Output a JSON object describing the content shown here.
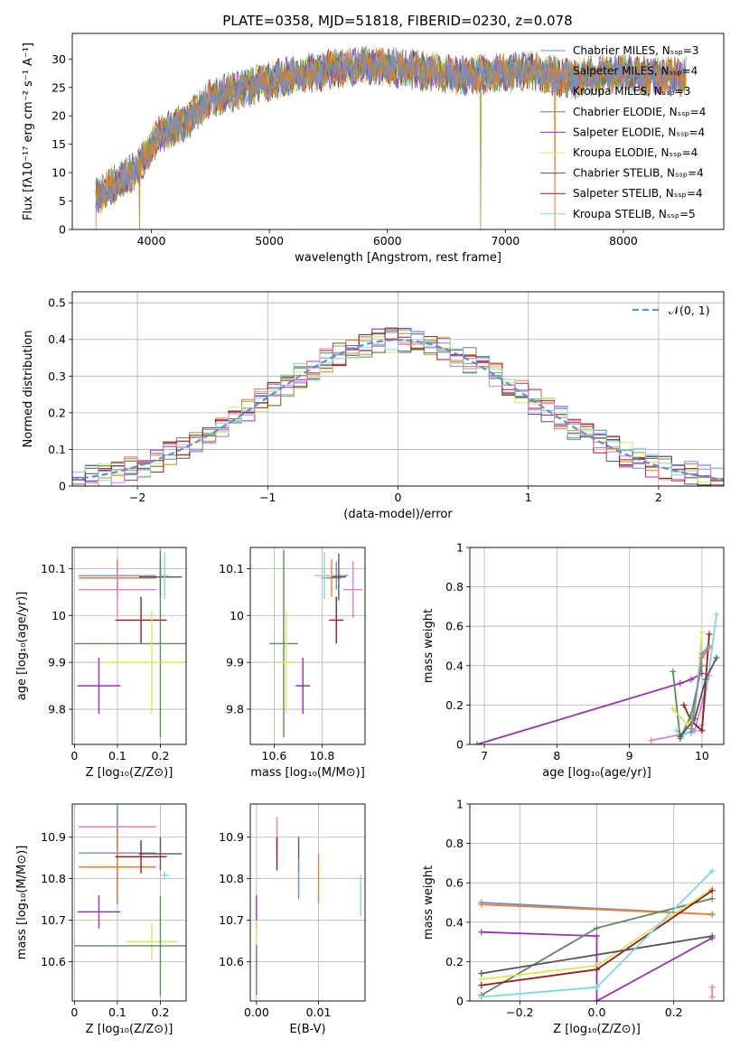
{
  "figure": {
    "title": "PLATE=0358, MJD=51818, FIBERID=0230, z=0.078"
  },
  "colors": {
    "Chabrier MILES": "#6a8fd8",
    "Salpeter MILES": "#f07d2a",
    "Kroupa MILES": "#a89a2a",
    "Chabrier ELODIE": "#5b8a5f",
    "Salpeter ELODIE": "#9a2fb8",
    "Kroupa ELODIE": "#d7e85a",
    "Chabrier STELIB": "#555555",
    "Salpeter STELIB": "#a01818",
    "Kroupa STELIB": "#7fd8e0",
    "pink": "#e27fc2",
    "normal_curve": "#5b8fd8",
    "grid": "#b0b0b0"
  },
  "chart_data": [
    {
      "id": "spectrum",
      "type": "line",
      "xlabel": "wavelength [Angstrom, rest frame]",
      "ylabel": "Flux [fλ10⁻¹⁷ erg cm⁻² s⁻¹ A⁻¹]",
      "xlim": [
        3330,
        8850
      ],
      "ylim": [
        0,
        34.5
      ],
      "xticks": [
        4000,
        5000,
        6000,
        7000,
        8000
      ],
      "yticks": [
        0,
        5,
        10,
        15,
        20,
        25,
        30
      ],
      "grid": false,
      "legend_position": "top-right",
      "legend": [
        "Chabrier MILES, Nₛₛₚ=3",
        "Salpeter MILES, Nₛₛₚ=4",
        "Kroupa MILES, Nₛₛₚ=3",
        "Chabrier ELODIE, Nₛₛₚ=4",
        "Salpeter ELODIE, Nₛₛₚ=4",
        "Kroupa ELODIE, Nₛₛₚ=4",
        "Chabrier STELIB, Nₛₛₚ=4",
        "Salpeter STELIB, Nₛₛₚ=4",
        "Kroupa STELIB, Nₛₛₚ=5"
      ],
      "legend_series": [
        "Chabrier MILES",
        "Salpeter MILES",
        "Kroupa MILES",
        "Chabrier ELODIE",
        "Salpeter ELODIE",
        "Kroupa ELODIE",
        "Chabrier STELIB",
        "Salpeter STELIB",
        "Kroupa STELIB"
      ],
      "continuum_x": [
        3550,
        3700,
        3900,
        4000,
        4100,
        4300,
        4500,
        4800,
        5000,
        5200,
        5500,
        5800,
        6000,
        6300,
        6600,
        7000,
        7200,
        7400,
        7600,
        7900,
        8200,
        8500
      ],
      "continuum_y": [
        6,
        8,
        11,
        15,
        17,
        19,
        23,
        25,
        26,
        27,
        28,
        29,
        28.5,
        28,
        27,
        27.5,
        28,
        27,
        26.5,
        27.5,
        27,
        27
      ],
      "x_start": 3530,
      "x_end": 8530
    },
    {
      "id": "residuals",
      "type": "line",
      "xlabel": "(data-model)/error",
      "ylabel": "Normed distribution",
      "xlim": [
        -2.5,
        2.5
      ],
      "ylim": [
        0,
        0.53
      ],
      "xticks": [
        -2,
        -1,
        0,
        1,
        2
      ],
      "xtick_labels": [
        "−2",
        "−1",
        "0",
        "1",
        "2"
      ],
      "yticks": [
        0.0,
        0.1,
        0.2,
        0.3,
        0.4,
        0.5
      ],
      "grid": true,
      "legend_position": "top-right",
      "legend": [
        "𝒩(0, 1)"
      ],
      "bin_width": 0.1
    },
    {
      "id": "age_vs_Z",
      "type": "scatter",
      "xlabel": "Z [log₁₀(Z/Z⊙)]",
      "ylabel": "age  [log₁₀(age/yr)]",
      "xlim": [
        -0.005,
        0.26
      ],
      "ylim": [
        9.725,
        10.145
      ],
      "xticks": [
        0.0,
        0.1,
        0.2
      ],
      "yticks": [
        9.8,
        9.9,
        10.0,
        10.1
      ],
      "grid": true,
      "points": [
        {
          "s": "Chabrier MILES",
          "x": 0.1,
          "y": 10.085,
          "xerr": 0.09,
          "yerr": 0.03
        },
        {
          "s": "Salpeter MILES",
          "x": 0.1,
          "y": 10.08,
          "xerr": 0.09,
          "yerr": 0.04
        },
        {
          "s": "pink",
          "x": 0.1,
          "y": 10.055,
          "xerr": 0.09,
          "yerr": 0.06
        },
        {
          "s": "Chabrier STELIB",
          "x": 0.2,
          "y": 10.082,
          "xerr": 0.05,
          "yerr": 0.04
        },
        {
          "s": "Kroupa STELIB",
          "x": 0.21,
          "y": 10.085,
          "xerr": 0.01,
          "yerr": 0.05
        },
        {
          "s": "Salpeter STELIB",
          "x": 0.155,
          "y": 9.99,
          "xerr": 0.06,
          "yerr": 0.05
        },
        {
          "s": "Chabrier ELODIE",
          "x": 0.2,
          "y": 9.94,
          "xerr": 0.2,
          "yerr": 0.2
        },
        {
          "s": "Kroupa ELODIE",
          "x": 0.18,
          "y": 9.9,
          "xerr": 0.12,
          "yerr": 0.11
        },
        {
          "s": "Salpeter ELODIE",
          "x": 0.057,
          "y": 9.85,
          "xerr": 0.05,
          "yerr": 0.06
        }
      ]
    },
    {
      "id": "age_vs_mass",
      "type": "scatter",
      "xlabel": "mass [log₁₀(M/M⊙)]",
      "ylabel": "",
      "xlim": [
        10.5,
        10.98
      ],
      "ylim": [
        9.725,
        10.145
      ],
      "xticks": [
        10.6,
        10.8
      ],
      "yticks": [
        9.8,
        9.9,
        10.0,
        10.1
      ],
      "grid": true,
      "points": [
        {
          "s": "Chabrier MILES",
          "x": 10.86,
          "y": 10.085,
          "xerr": 0.05,
          "yerr": 0.03
        },
        {
          "s": "Salpeter MILES",
          "x": 10.84,
          "y": 10.08,
          "xerr": 0.04,
          "yerr": 0.04
        },
        {
          "s": "pink",
          "x": 10.93,
          "y": 10.055,
          "xerr": 0.04,
          "yerr": 0.06
        },
        {
          "s": "Chabrier STELIB",
          "x": 10.87,
          "y": 10.082,
          "xerr": 0.03,
          "yerr": 0.05
        },
        {
          "s": "Kroupa STELIB",
          "x": 10.81,
          "y": 10.085,
          "xerr": 0.04,
          "yerr": 0.05
        },
        {
          "s": "Salpeter STELIB",
          "x": 10.86,
          "y": 9.99,
          "xerr": 0.03,
          "yerr": 0.05
        },
        {
          "s": "Chabrier ELODIE",
          "x": 10.64,
          "y": 9.94,
          "xerr": 0.06,
          "yerr": 0.2
        },
        {
          "s": "Kroupa ELODIE",
          "x": 10.65,
          "y": 9.9,
          "xerr": 0.03,
          "yerr": 0.11
        },
        {
          "s": "Salpeter ELODIE",
          "x": 10.72,
          "y": 9.85,
          "xerr": 0.03,
          "yerr": 0.06
        }
      ]
    },
    {
      "id": "weight_vs_age",
      "type": "line",
      "xlabel": "age  [log₁₀(age/yr)]",
      "ylabel": "mass weight",
      "xlim": [
        6.8,
        10.3
      ],
      "ylim": [
        0,
        1.0
      ],
      "xticks": [
        7,
        8,
        9,
        10
      ],
      "yticks": [
        0.0,
        0.2,
        0.4,
        0.6,
        0.8,
        1.0
      ],
      "grid": true,
      "series": [
        {
          "s": "Salpeter ELODIE",
          "x": [
            6.9,
            9.7,
            9.85,
            10.0
          ],
          "y": [
            0.0,
            0.31,
            0.33,
            0.36
          ]
        },
        {
          "s": "pink",
          "x": [
            9.3,
            9.7,
            9.9,
            10.1
          ],
          "y": [
            0.02,
            0.05,
            0.07,
            0.35
          ]
        },
        {
          "s": "Kroupa STELIB",
          "x": [
            9.65,
            9.75,
            10.0,
            10.2
          ],
          "y": [
            0.07,
            0.05,
            0.1,
            0.66
          ]
        },
        {
          "s": "Salpeter STELIB",
          "x": [
            9.75,
            9.85,
            10.0,
            10.1
          ],
          "y": [
            0.2,
            0.12,
            0.07,
            0.56
          ]
        },
        {
          "s": "Chabrier ELODIE",
          "x": [
            9.6,
            9.7,
            9.85,
            10.0
          ],
          "y": [
            0.37,
            0.03,
            0.15,
            0.4
          ]
        },
        {
          "s": "Kroupa ELODIE",
          "x": [
            9.6,
            9.8,
            9.9,
            10.0
          ],
          "y": [
            0.18,
            0.1,
            0.15,
            0.57
          ]
        },
        {
          "s": "Chabrier STELIB",
          "x": [
            9.7,
            9.9,
            10.05,
            10.2
          ],
          "y": [
            0.04,
            0.13,
            0.33,
            0.44
          ]
        },
        {
          "s": "Salpeter MILES",
          "x": [
            9.85,
            10.0,
            10.1
          ],
          "y": [
            0.08,
            0.44,
            0.49
          ]
        },
        {
          "s": "Chabrier MILES",
          "x": [
            9.85,
            10.0,
            10.1
          ],
          "y": [
            0.06,
            0.46,
            0.5
          ]
        }
      ]
    },
    {
      "id": "mass_vs_Z",
      "type": "scatter",
      "xlabel": "Z [log₁₀(Z/Z⊙)]",
      "ylabel": "mass [log₁₀(M/M⊙)]",
      "xlim": [
        -0.005,
        0.26
      ],
      "ylim": [
        10.505,
        10.98
      ],
      "xticks": [
        0.0,
        0.1,
        0.2
      ],
      "yticks": [
        10.6,
        10.7,
        10.8,
        10.9
      ],
      "grid": true,
      "points": [
        {
          "s": "pink",
          "x": 0.1,
          "y": 10.925,
          "xerr": 0.09,
          "yerr": 0.05
        },
        {
          "s": "Chabrier MILES",
          "x": 0.1,
          "y": 10.862,
          "xerr": 0.09,
          "yerr": 0.12
        },
        {
          "s": "Salpeter MILES",
          "x": 0.1,
          "y": 10.828,
          "xerr": 0.09,
          "yerr": 0.09
        },
        {
          "s": "Chabrier STELIB",
          "x": 0.2,
          "y": 10.86,
          "xerr": 0.05,
          "yerr": 0.04
        },
        {
          "s": "Salpeter STELIB",
          "x": 0.155,
          "y": 10.853,
          "xerr": 0.06,
          "yerr": 0.04
        },
        {
          "s": "Kroupa STELIB",
          "x": 0.21,
          "y": 10.808,
          "xerr": 0.01,
          "yerr": 0.01
        },
        {
          "s": "Salpeter ELODIE",
          "x": 0.057,
          "y": 10.72,
          "xerr": 0.05,
          "yerr": 0.04
        },
        {
          "s": "Kroupa ELODIE",
          "x": 0.18,
          "y": 10.648,
          "xerr": 0.06,
          "yerr": 0.045
        },
        {
          "s": "Chabrier ELODIE",
          "x": 0.2,
          "y": 10.638,
          "xerr": 0.2,
          "yerr": 0.12
        }
      ]
    },
    {
      "id": "mass_vs_ebv",
      "type": "scatter",
      "xlabel": "E(B-V)",
      "ylabel": "",
      "xlim": [
        -0.001,
        0.0175
      ],
      "ylim": [
        10.505,
        10.98
      ],
      "xticks": [
        0.0,
        0.01
      ],
      "xtick_labels": [
        "0.00",
        "0.01"
      ],
      "yticks": [
        10.6,
        10.7,
        10.8,
        10.9
      ],
      "grid": true,
      "points": [
        {
          "s": "pink",
          "x": 0.0033,
          "y": 10.9,
          "xerr": 0,
          "yerr": 0.05
        },
        {
          "s": "Salpeter STELIB",
          "x": 0.0033,
          "y": 10.86,
          "xerr": 0,
          "yerr": 0.04
        },
        {
          "s": "Chabrier STELIB",
          "x": 0.0068,
          "y": 10.86,
          "xerr": 0,
          "yerr": 0.04
        },
        {
          "s": "Chabrier MILES",
          "x": 0.0068,
          "y": 10.8,
          "xerr": 0,
          "yerr": 0.05
        },
        {
          "s": "Salpeter MILES",
          "x": 0.01,
          "y": 10.8,
          "xerr": 0,
          "yerr": 0.06
        },
        {
          "s": "Kroupa STELIB",
          "x": 0.0168,
          "y": 10.76,
          "xerr": 0,
          "yerr": 0.05
        },
        {
          "s": "Salpeter ELODIE",
          "x": 0.0,
          "y": 10.72,
          "xerr": 0,
          "yerr": 0.04
        },
        {
          "s": "Kroupa ELODIE",
          "x": 0.0,
          "y": 10.65,
          "xerr": 0,
          "yerr": 0.05
        },
        {
          "s": "Chabrier ELODIE",
          "x": 0.0,
          "y": 10.58,
          "xerr": 0,
          "yerr": 0.06
        }
      ]
    },
    {
      "id": "weight_vs_Z",
      "type": "line",
      "xlabel": "Z [log₁₀(Z/Z⊙)]",
      "ylabel": "mass weight",
      "xlim": [
        -0.33,
        0.33
      ],
      "ylim": [
        0,
        1.0
      ],
      "xticks": [
        -0.2,
        0.0,
        0.2
      ],
      "xtick_labels": [
        "−0.2",
        "0.0",
        "0.2"
      ],
      "yticks": [
        0.0,
        0.2,
        0.4,
        0.6,
        0.8,
        1.0
      ],
      "grid": true,
      "series": [
        {
          "s": "Chabrier MILES",
          "x": [
            -0.3,
            0.3
          ],
          "y": [
            0.5,
            0.44
          ]
        },
        {
          "s": "Salpeter MILES",
          "x": [
            -0.3,
            0.3
          ],
          "y": [
            0.49,
            0.44
          ]
        },
        {
          "s": "Salpeter ELODIE",
          "x": [
            -0.3,
            0.0,
            0.0,
            0.3
          ],
          "y": [
            0.35,
            0.33,
            0.0,
            0.32
          ]
        },
        {
          "s": "Chabrier ELODIE",
          "x": [
            -0.3,
            0.0,
            0.3
          ],
          "y": [
            0.03,
            0.37,
            0.52
          ]
        },
        {
          "s": "Kroupa ELODIE",
          "x": [
            -0.3,
            0.0,
            0.3
          ],
          "y": [
            0.11,
            0.18,
            0.57
          ]
        },
        {
          "s": "Salpeter STELIB",
          "x": [
            -0.3,
            0.0,
            0.3
          ],
          "y": [
            0.08,
            0.16,
            0.56
          ]
        },
        {
          "s": "Chabrier STELIB",
          "x": [
            -0.3,
            0.3
          ],
          "y": [
            0.14,
            0.33
          ]
        },
        {
          "s": "Kroupa STELIB",
          "x": [
            -0.3,
            0.0,
            0.3
          ],
          "y": [
            0.02,
            0.07,
            0.66
          ]
        },
        {
          "s": "pink",
          "x": [
            0.3,
            0.3
          ],
          "y": [
            0.02,
            0.07
          ]
        }
      ]
    }
  ]
}
